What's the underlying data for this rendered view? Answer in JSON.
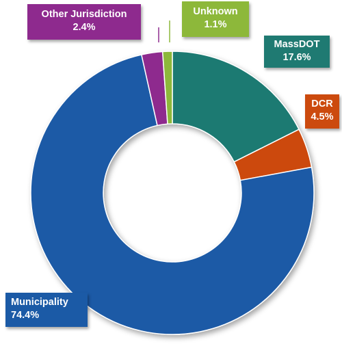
{
  "chart_data": {
    "type": "pie",
    "donut": true,
    "categories": [
      "MassDOT",
      "DCR",
      "Municipality",
      "Other Jurisdiction",
      "Unknown"
    ],
    "values": [
      17.6,
      4.5,
      74.4,
      2.4,
      1.1
    ],
    "value_labels": [
      "17.6%",
      "4.5%",
      "74.4%",
      "2.4%",
      "1.1%"
    ],
    "colors": [
      "#1f7a72",
      "#cc4a0e",
      "#1b5aa6",
      "#8e2a8e",
      "#8db83a"
    ],
    "start_angle_deg": 0,
    "direction": "clockwise"
  }
}
